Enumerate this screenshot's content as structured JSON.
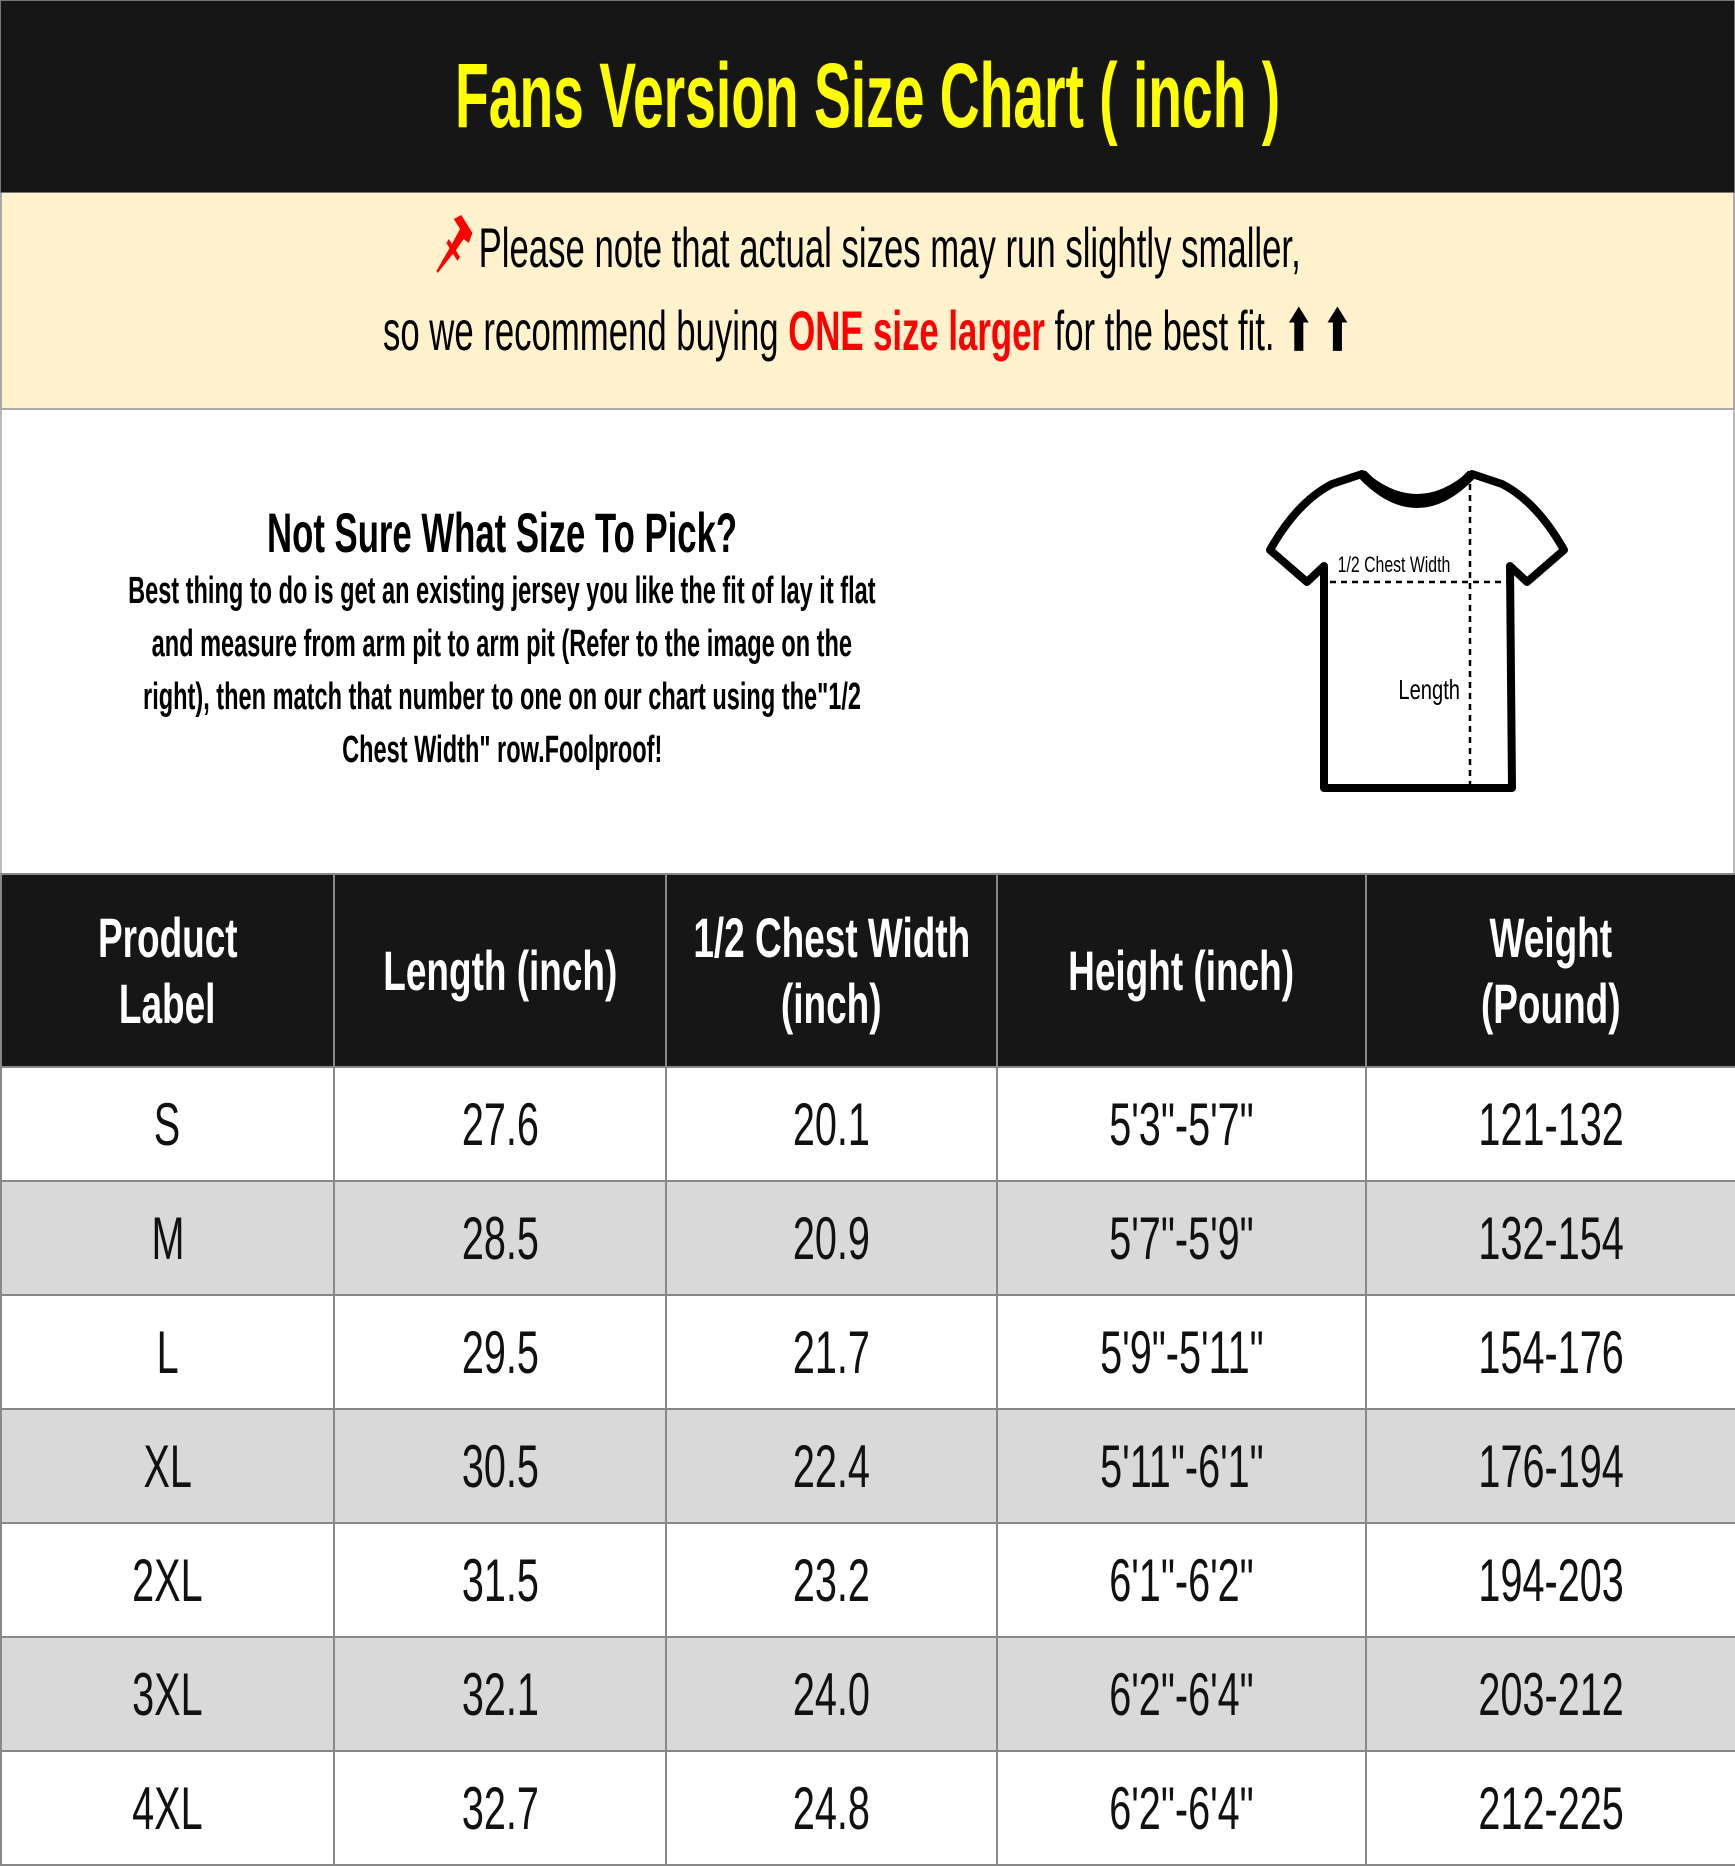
{
  "title": "Fans Version Size Chart ( inch )",
  "note": {
    "pin_icon": "pushpin-icon",
    "line1": "Please note that actual sizes may run slightly smaller,",
    "line2_before": "so we recommend buying ",
    "line2_highlight": "ONE size larger",
    "line2_after": " for the best fit. ",
    "arrows": "⬆ ⬆",
    "colors": {
      "background": "#fff2cc",
      "highlight": "#ff0000"
    }
  },
  "help": {
    "heading": "Not Sure What Size To Pick?",
    "lines": [
      "Best thing to do is get an existing jersey you like the fit of lay it flat",
      "and measure from arm pit to arm pit (Refer to the image on the",
      "right), then match that number to one on our chart using the\"1/2",
      "Chest Width\" row.Foolproof!"
    ]
  },
  "diagram": {
    "chest_label": "1/2 Chest Width",
    "length_label": "Length"
  },
  "table": {
    "headers": [
      [
        "Product",
        "Label"
      ],
      [
        "Length (inch)"
      ],
      [
        "1/2 Chest Width",
        "(inch)"
      ],
      [
        "Height (inch)"
      ],
      [
        "Weight",
        "(Pound)"
      ]
    ],
    "rows": [
      [
        "S",
        "27.6",
        "20.1",
        "5'3\"-5'7\"",
        "121-132"
      ],
      [
        "M",
        "28.5",
        "20.9",
        "5'7\"-5'9\"",
        "132-154"
      ],
      [
        "L",
        "29.5",
        "21.7",
        "5'9\"-5'11\"",
        "154-176"
      ],
      [
        "XL",
        "30.5",
        "22.4",
        "5'11\"-6'1\"",
        "176-194"
      ],
      [
        "2XL",
        "31.5",
        "23.2",
        "6'1\"-6'2\"",
        "194-203"
      ],
      [
        "3XL",
        "32.1",
        "24.0",
        "6'2\"-6'4\"",
        "203-212"
      ],
      [
        "4XL",
        "32.7",
        "24.8",
        "6'2\"-6'4\"",
        "212-225"
      ]
    ]
  },
  "colors": {
    "title_bg": "#161616",
    "title_text": "#ffff00",
    "alt_row": "#d9d9d9"
  }
}
